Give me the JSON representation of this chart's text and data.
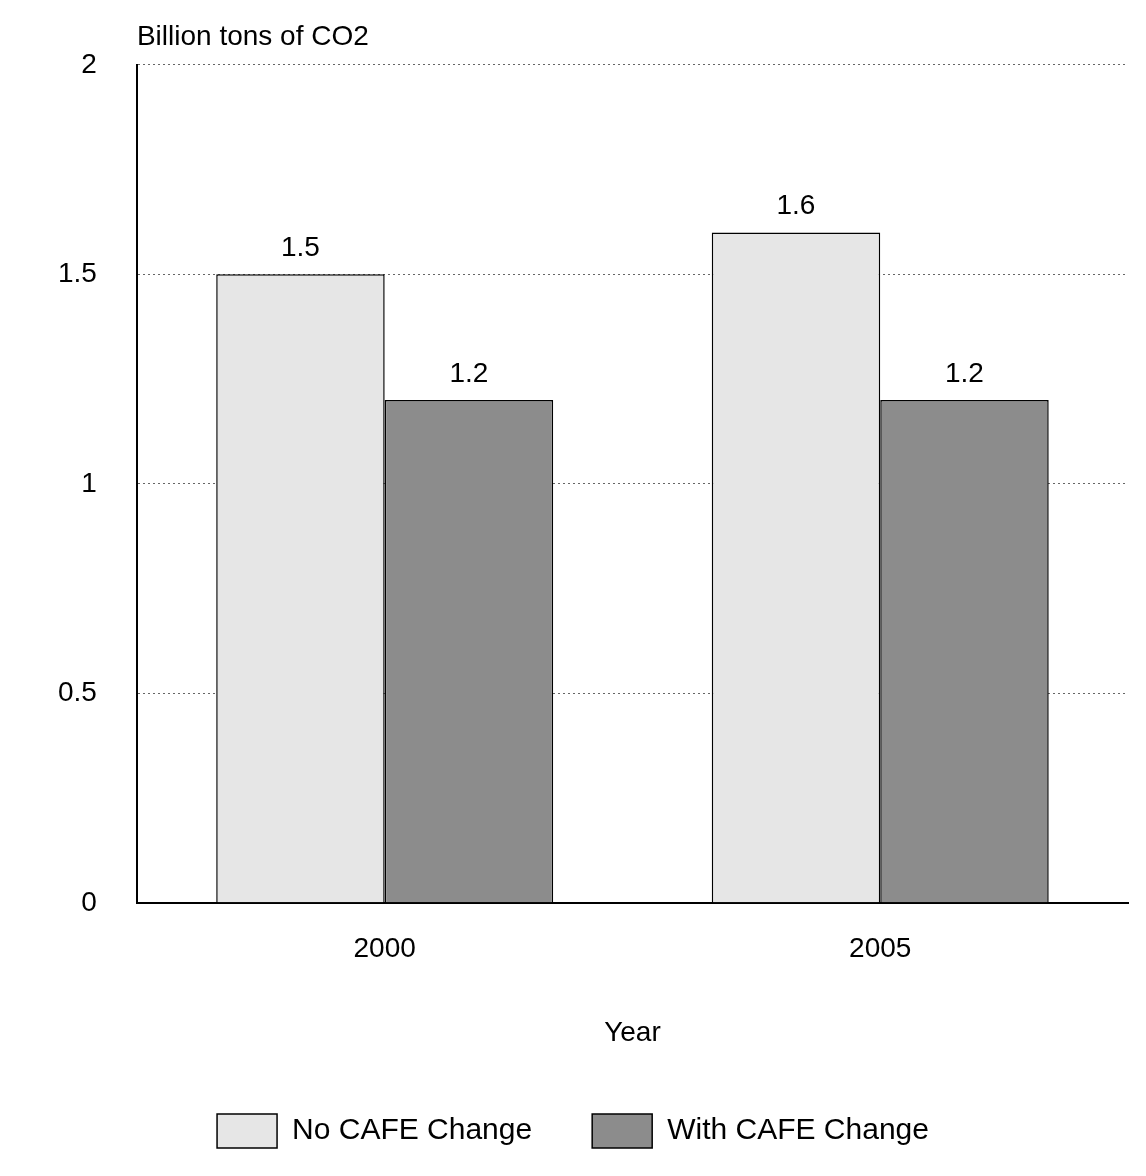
{
  "chart_data": {
    "type": "bar",
    "ylabel": "Billion tons of CO2",
    "xlabel": "Year",
    "categories": [
      "2000",
      "2005"
    ],
    "series": [
      {
        "name": "No CAFE Change",
        "color": "#e6e6e6",
        "values": [
          1.5,
          1.6
        ]
      },
      {
        "name": "With CAFE Change",
        "color": "#8c8c8c",
        "values": [
          1.2,
          1.2
        ]
      }
    ],
    "ylim": [
      0,
      2
    ],
    "yticks": [
      0,
      0.5,
      1,
      1.5,
      2
    ],
    "grid": "y",
    "legend": "bottom",
    "data_labels": true
  }
}
